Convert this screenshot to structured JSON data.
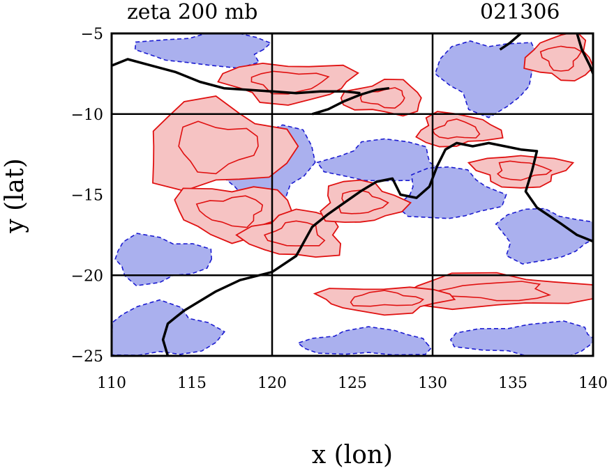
{
  "title_left": "zeta 200 mb",
  "title_right": "021306",
  "xlabel": "x (lon)",
  "ylabel": "y (lat)",
  "x_ticks": [
    "110",
    "115",
    "120",
    "125",
    "130",
    "135",
    "140"
  ],
  "y_ticks": [
    "−5",
    "−10",
    "−15",
    "−20",
    "−25"
  ],
  "colors": {
    "positive_fill": "#f6c3c3",
    "positive_contour": "#e01010",
    "negative_fill": "#aab0ee",
    "negative_contour": "#1a1ad0",
    "coastline": "#000000",
    "grid": "#000000"
  },
  "chart_data": {
    "type": "contour",
    "field": "zeta",
    "level": "200 mb",
    "time": "021306",
    "xlim": [
      110,
      140
    ],
    "ylim": [
      -25,
      -5
    ],
    "x_tick_values": [
      110,
      115,
      120,
      125,
      130,
      135,
      140
    ],
    "y_tick_values": [
      -5,
      -10,
      -15,
      -20,
      -25
    ],
    "gridlines_x": [
      120,
      130
    ],
    "gridlines_y": [
      -10,
      -20
    ],
    "positive_regions": [
      {
        "lon": 116.5,
        "lat": -12.0,
        "rlon": 4.5,
        "rlat": 2.6
      },
      {
        "lon": 117.5,
        "lat": -16.0,
        "rlon": 3.5,
        "rlat": 1.6
      },
      {
        "lon": 121.5,
        "lat": -17.5,
        "rlon": 3.0,
        "rlat": 1.4
      },
      {
        "lon": 125.5,
        "lat": -15.5,
        "rlon": 2.5,
        "rlat": 1.3
      },
      {
        "lon": 121.0,
        "lat": -8.0,
        "rlon": 4.0,
        "rlat": 1.2
      },
      {
        "lon": 127.0,
        "lat": -9.0,
        "rlon": 2.5,
        "rlat": 1.0
      },
      {
        "lon": 131.5,
        "lat": -11.0,
        "rlon": 2.5,
        "rlat": 1.0
      },
      {
        "lon": 135.5,
        "lat": -13.5,
        "rlon": 2.8,
        "rlat": 1.0
      },
      {
        "lon": 138.0,
        "lat": -6.5,
        "rlon": 2.0,
        "rlat": 1.4
      },
      {
        "lon": 134.0,
        "lat": -21.0,
        "rlon": 6.0,
        "rlat": 1.0
      },
      {
        "lon": 127.0,
        "lat": -21.5,
        "rlon": 4.0,
        "rlat": 0.8
      }
    ],
    "negative_regions": [
      {
        "lon": 113.0,
        "lat": -23.5,
        "rlon": 3.5,
        "rlat": 1.6
      },
      {
        "lon": 113.0,
        "lat": -19.0,
        "rlon": 3.0,
        "rlat": 1.4
      },
      {
        "lon": 119.5,
        "lat": -13.0,
        "rlon": 3.0,
        "rlat": 2.5
      },
      {
        "lon": 116.0,
        "lat": -6.0,
        "rlon": 4.0,
        "rlat": 1.0
      },
      {
        "lon": 127.0,
        "lat": -13.0,
        "rlon": 3.5,
        "rlat": 1.3
      },
      {
        "lon": 131.0,
        "lat": -15.0,
        "rlon": 3.0,
        "rlat": 1.6
      },
      {
        "lon": 137.0,
        "lat": -17.5,
        "rlon": 3.0,
        "rlat": 1.6
      },
      {
        "lon": 133.5,
        "lat": -7.5,
        "rlon": 3.0,
        "rlat": 2.2
      },
      {
        "lon": 136.0,
        "lat": -24.0,
        "rlon": 4.5,
        "rlat": 1.0
      },
      {
        "lon": 126.0,
        "lat": -24.2,
        "rlon": 4.0,
        "rlat": 0.8
      }
    ],
    "coastline": [
      [
        [
          113.5,
          -25
        ],
        [
          113.2,
          -24
        ],
        [
          113.5,
          -23
        ],
        [
          114.5,
          -22.2
        ],
        [
          116.5,
          -21.0
        ],
        [
          118.0,
          -20.3
        ],
        [
          120.0,
          -19.8
        ],
        [
          121.5,
          -18.8
        ],
        [
          122.5,
          -17.0
        ],
        [
          123.5,
          -16.2
        ],
        [
          124.5,
          -15.5
        ],
        [
          125.5,
          -14.8
        ],
        [
          126.5,
          -14.2
        ],
        [
          127.5,
          -14.0
        ],
        [
          128.0,
          -15.0
        ],
        [
          129.0,
          -15.2
        ],
        [
          129.8,
          -14.5
        ],
        [
          130.3,
          -13.2
        ],
        [
          130.8,
          -12.2
        ],
        [
          131.5,
          -11.8
        ],
        [
          132.5,
          -12.0
        ],
        [
          133.5,
          -11.8
        ],
        [
          134.5,
          -12.0
        ],
        [
          135.5,
          -12.2
        ],
        [
          136.5,
          -12.3
        ],
        [
          136.2,
          -13.5
        ],
        [
          135.8,
          -14.8
        ],
        [
          136.5,
          -15.8
        ],
        [
          138.0,
          -16.8
        ],
        [
          139.0,
          -17.5
        ],
        [
          140.0,
          -17.9
        ]
      ],
      [
        [
          110.0,
          -7.0
        ],
        [
          111.0,
          -6.6
        ],
        [
          112.5,
          -7.0
        ],
        [
          114.0,
          -7.4
        ],
        [
          115.5,
          -8.0
        ],
        [
          117.0,
          -8.4
        ],
        [
          118.5,
          -8.5
        ],
        [
          120.0,
          -8.6
        ],
        [
          121.5,
          -8.7
        ],
        [
          123.0,
          -8.6
        ],
        [
          124.5,
          -8.6
        ],
        [
          125.5,
          -8.7
        ]
      ],
      [
        [
          122.5,
          -10.0
        ],
        [
          123.5,
          -9.7
        ],
        [
          124.5,
          -9.2
        ],
        [
          125.5,
          -8.8
        ],
        [
          126.5,
          -8.5
        ],
        [
          127.3,
          -8.4
        ]
      ],
      [
        [
          135.5,
          -5.0
        ],
        [
          134.8,
          -5.6
        ],
        [
          134.2,
          -6.0
        ]
      ],
      [
        [
          139.0,
          -5.0
        ],
        [
          139.3,
          -6.0
        ],
        [
          139.8,
          -7.0
        ],
        [
          140.0,
          -7.5
        ]
      ]
    ]
  }
}
